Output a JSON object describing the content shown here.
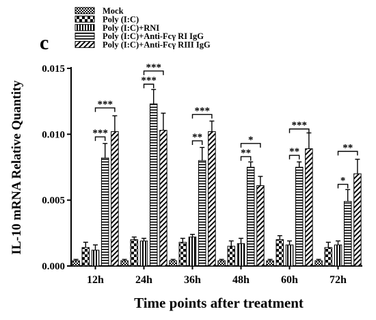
{
  "chart_data": {
    "type": "bar",
    "panel_label": "c",
    "ylabel": "IL-10 mRNA Relative Quantity",
    "xlabel": "Time points after treatment",
    "ylim": [
      0,
      0.015
    ],
    "yticks": [
      "0.000",
      "0.005",
      "0.010",
      "0.015"
    ],
    "ytick_values": [
      0,
      0.005,
      0.01,
      0.015
    ],
    "categories": [
      "12h",
      "24h",
      "36h",
      "48h",
      "60h",
      "72h"
    ],
    "series": [
      {
        "name": "Mock",
        "pattern": "checker-small",
        "values": [
          0.0004,
          0.0004,
          0.0004,
          0.0004,
          0.0004,
          0.0004
        ],
        "errors": [
          0.0001,
          0.0001,
          0.0001,
          0.0001,
          0.0001,
          0.0001
        ]
      },
      {
        "name": "Poly (I:C)",
        "pattern": "checker-large",
        "values": [
          0.0014,
          0.002,
          0.0018,
          0.0015,
          0.002,
          0.0014
        ],
        "errors": [
          0.0004,
          0.0002,
          0.0003,
          0.0004,
          0.0003,
          0.0004
        ]
      },
      {
        "name": "Poly (I:C)+RNI",
        "pattern": "vertical",
        "values": [
          0.0012,
          0.0019,
          0.0022,
          0.0017,
          0.0016,
          0.0016
        ],
        "errors": [
          0.0004,
          0.0002,
          0.0002,
          0.0004,
          0.0003,
          0.0003
        ]
      },
      {
        "name": "Poly (I:C)+Anti-Fcγ  RI IgG",
        "pattern": "horizontal",
        "values": [
          0.0082,
          0.0123,
          0.008,
          0.0075,
          0.0075,
          0.0049
        ],
        "errors": [
          0.0011,
          0.0011,
          0.001,
          0.0004,
          0.0004,
          0.0009
        ]
      },
      {
        "name": "Poly (I:C)+Anti-Fcγ  RIII IgG",
        "pattern": "diagonal",
        "values": [
          0.0102,
          0.0103,
          0.0102,
          0.0061,
          0.0089,
          0.007
        ],
        "errors": [
          0.0012,
          0.0013,
          0.0008,
          0.0007,
          0.0012,
          0.0011
        ]
      }
    ],
    "significance": [
      {
        "category": 0,
        "pairs": [
          {
            "from": 2,
            "to": 3,
            "label": "***",
            "y": 0.0098
          },
          {
            "from": 2,
            "to": 4,
            "label": "***",
            "y": 0.012
          }
        ]
      },
      {
        "category": 1,
        "pairs": [
          {
            "from": 2,
            "to": 3,
            "label": "***",
            "y": 0.0138
          },
          {
            "from": 2,
            "to": 4,
            "label": "***",
            "y": 0.0148
          }
        ]
      },
      {
        "category": 2,
        "pairs": [
          {
            "from": 2,
            "to": 3,
            "label": "**",
            "y": 0.0095
          },
          {
            "from": 2,
            "to": 4,
            "label": "***",
            "y": 0.0115
          }
        ]
      },
      {
        "category": 3,
        "pairs": [
          {
            "from": 2,
            "to": 3,
            "label": "**",
            "y": 0.0083
          },
          {
            "from": 2,
            "to": 4,
            "label": "*",
            "y": 0.0093
          }
        ]
      },
      {
        "category": 4,
        "pairs": [
          {
            "from": 2,
            "to": 3,
            "label": "**",
            "y": 0.0084
          },
          {
            "from": 2,
            "to": 4,
            "label": "***",
            "y": 0.0104
          }
        ]
      },
      {
        "category": 5,
        "pairs": [
          {
            "from": 2,
            "to": 3,
            "label": "*",
            "y": 0.0062
          },
          {
            "from": 2,
            "to": 4,
            "label": "**",
            "y": 0.0087
          }
        ]
      }
    ],
    "legend_position": "top-left"
  }
}
